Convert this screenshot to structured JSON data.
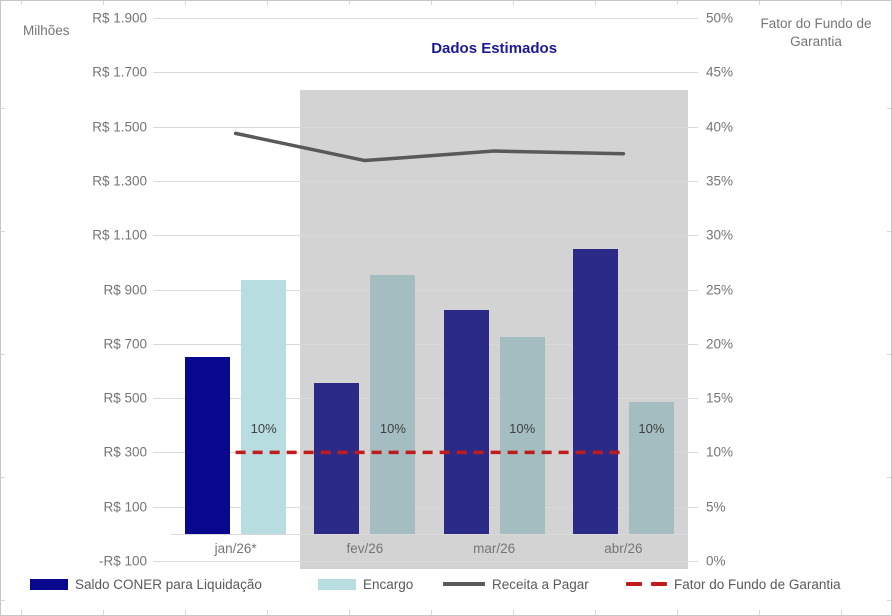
{
  "chart_data": {
    "type": "combo-bar-line",
    "title": "Dados Estimados",
    "categories": [
      "jan/26*",
      "fev/26",
      "mar/26",
      "abr/26"
    ],
    "series": [
      {
        "name": "Saldo CONER para Liquidação",
        "type": "bar",
        "axis": "left",
        "values": [
          650,
          555,
          825,
          1050
        ],
        "color_actual": "#08088F",
        "color_estimated": "#2B2B87"
      },
      {
        "name": "Encargo",
        "type": "bar",
        "axis": "left",
        "values": [
          935,
          955,
          725,
          485
        ],
        "color_actual": "#B8DDE1",
        "color_estimated": "#A3BDC0"
      },
      {
        "name": "Receita a Pagar",
        "type": "line",
        "axis": "left",
        "values": [
          1475,
          1375,
          1410,
          1400
        ],
        "color": "#595959"
      },
      {
        "name": "Fator do Fundo de Garantia",
        "type": "dashed-line",
        "axis": "right",
        "values": [
          10,
          10,
          10,
          10
        ],
        "point_labels": [
          "10%",
          "10%",
          "10%",
          "10%"
        ],
        "color": "#C11B1B"
      }
    ],
    "left_axis": {
      "title": "Milhões",
      "min": -100,
      "max": 1900,
      "step": 200,
      "tick_labels": [
        "R$ 1.900",
        "R$ 1.700",
        "R$ 1.500",
        "R$ 1.300",
        "R$ 1.100",
        "R$ 900",
        "R$ 700",
        "R$ 500",
        "R$ 300",
        "R$ 100",
        "-R$ 100"
      ],
      "tick_values": [
        1900,
        1700,
        1500,
        1300,
        1100,
        900,
        700,
        500,
        300,
        100,
        -100
      ]
    },
    "right_axis": {
      "title": "Fator do Fundo de Garantia",
      "min": 0,
      "max": 50,
      "step": 5,
      "tick_labels": [
        "50%",
        "45%",
        "40%",
        "35%",
        "30%",
        "25%",
        "20%",
        "15%",
        "10%",
        "5%",
        "0%"
      ],
      "tick_values": [
        50,
        45,
        40,
        35,
        30,
        25,
        20,
        15,
        10,
        5,
        0
      ]
    },
    "estimated_region": {
      "label": "Dados Estimados",
      "categories": [
        "fev/26",
        "mar/26",
        "abr/26"
      ],
      "fill": "#D4D3D3"
    },
    "legend": [
      {
        "label": "Saldo CONER para Liquidação",
        "swatch": "bar",
        "color": "#08088F"
      },
      {
        "label": "Encargo",
        "swatch": "bar",
        "color": "#B8DDE1"
      },
      {
        "label": "Receita a Pagar",
        "swatch": "line",
        "color": "#595959"
      },
      {
        "label": "Fator do Fundo de Garantia",
        "swatch": "dash",
        "color": "#C11B1B"
      }
    ],
    "grid": true,
    "gridline_color": "#D9D9D9"
  }
}
